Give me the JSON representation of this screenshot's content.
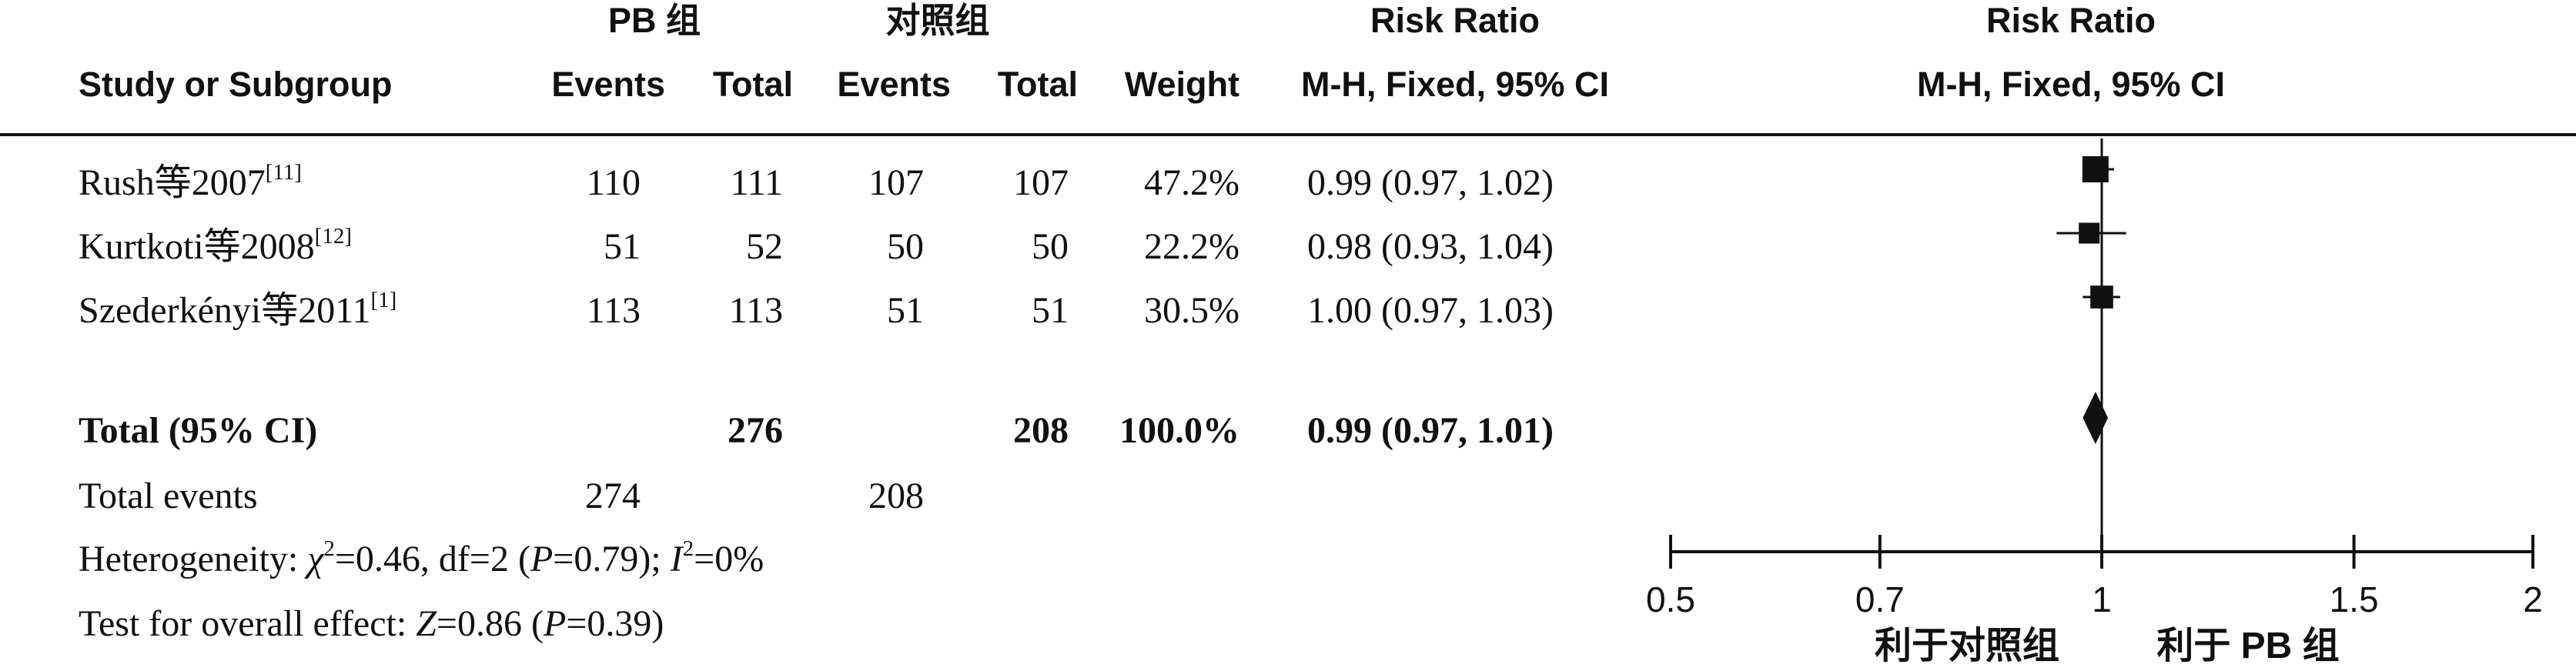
{
  "header": {
    "group1": "PB 组",
    "group2": "对照组",
    "study_col": "Study or Subgroup",
    "events": "Events",
    "total": "Total",
    "weight": "Weight",
    "ratio_title": "Risk Ratio",
    "ratio_method": "M-H, Fixed, 95% CI",
    "plot_title": "Risk Ratio",
    "plot_method": "M-H, Fixed, 95% CI"
  },
  "studies": [
    {
      "name": "Rush等2007",
      "ref": "[11]",
      "events1": "110",
      "total1": "111",
      "events2": "107",
      "total2": "107",
      "weight": "47.2%",
      "ci": "0.99 (0.97, 1.02)"
    },
    {
      "name": "Kurtkoti等2008",
      "ref": "[12]",
      "events1": "51",
      "total1": "52",
      "events2": "50",
      "total2": "50",
      "weight": "22.2%",
      "ci": "0.98 (0.93, 1.04)"
    },
    {
      "name": "Szederkényi等2011",
      "ref": "[1]",
      "events1": "113",
      "total1": "113",
      "events2": "51",
      "total2": "51",
      "weight": "30.5%",
      "ci": "1.00 (0.97, 1.03)"
    }
  ],
  "total": {
    "label": "Total (95% CI)",
    "total1": "276",
    "total2": "208",
    "weight": "100.0%",
    "ci": "0.99 (0.97, 1.01)"
  },
  "total_events": {
    "label": "Total events",
    "events1": "274",
    "events2": "208"
  },
  "heterogeneity": {
    "prefix": "Heterogeneity: ",
    "chi": "χ",
    "chi_exp": "2",
    "chi_rest": "=0.46, df=2 (",
    "p": "P",
    "p_rest": "=0.79); ",
    "i": "I",
    "i_exp": "2",
    "i_rest": "=0%"
  },
  "overall": {
    "prefix": "Test for overall effect: ",
    "z": "Z",
    "z_rest": "=0.86 (",
    "p": "P",
    "p_rest": "=0.39)"
  },
  "axis": {
    "favours_left": "利于对照组",
    "favours_right": "利于 PB 组"
  },
  "chart_data": {
    "type": "forest",
    "scale": "log",
    "xlim": [
      0.5,
      2
    ],
    "ticks": [
      0.5,
      0.7,
      1,
      1.5,
      2
    ],
    "tick_labels": [
      "0.5",
      "0.7",
      "1",
      "1.5",
      "2"
    ],
    "reference_line": 1,
    "studies": [
      {
        "rr": 0.99,
        "lower": 0.97,
        "upper": 1.02,
        "weight": 47.2
      },
      {
        "rr": 0.98,
        "lower": 0.93,
        "upper": 1.04,
        "weight": 22.2
      },
      {
        "rr": 1.0,
        "lower": 0.97,
        "upper": 1.03,
        "weight": 30.5
      }
    ],
    "pooled": {
      "rr": 0.99,
      "lower": 0.97,
      "upper": 1.01
    }
  }
}
